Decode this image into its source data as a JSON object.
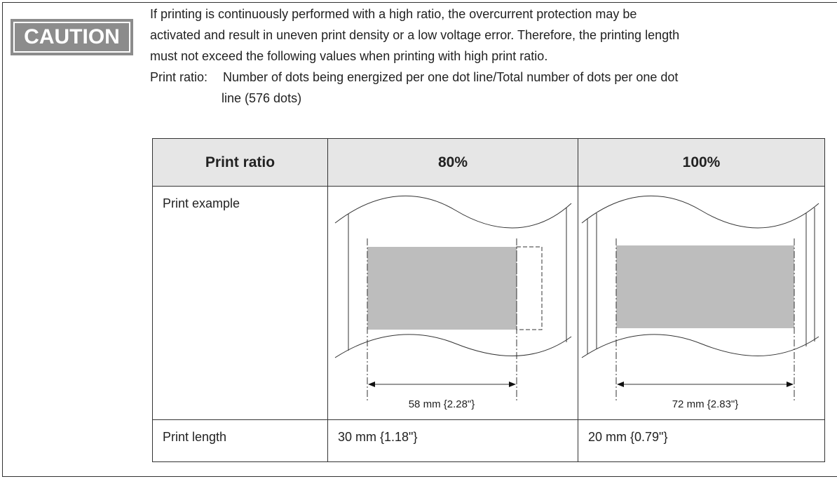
{
  "caution_label": "CAUTION",
  "paragraph_lines": [
    "If printing is continuously performed with a high ratio, the overcurrent protection may be",
    "activated and result in uneven print density or a low voltage error. Therefore, the printing length",
    "must not exceed the following values when printing with high print ratio."
  ],
  "print_ratio": {
    "label": "Print ratio:",
    "lines": [
      "Number of dots being energized per one dot line/Total number of dots per one dot",
      "line (576 dots)"
    ]
  },
  "table": {
    "header": [
      "Print ratio",
      "80%",
      "100%"
    ],
    "example_row": {
      "label": "Print example",
      "dimensions": [
        "58 mm {2.28\"}",
        "72 mm {2.83\"}"
      ]
    },
    "length_row": [
      "Print length",
      "30 mm {1.18\"}",
      "20 mm {0.79\"}"
    ]
  }
}
